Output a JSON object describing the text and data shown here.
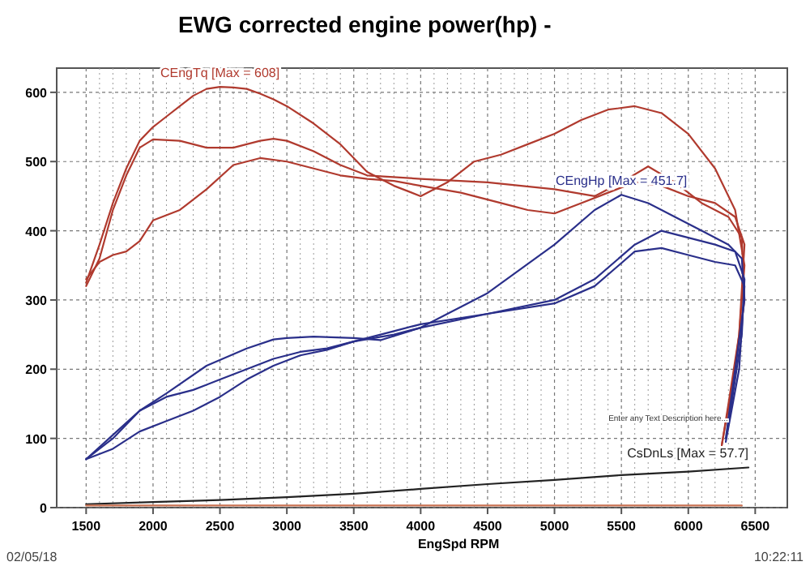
{
  "chart_data": {
    "type": "line",
    "title": "EWG corrected engine power(hp) -",
    "xlabel": "EngSpd RPM",
    "xlim": [
      1280,
      6740
    ],
    "ylim": [
      0,
      635
    ],
    "xticks": [
      1500,
      2000,
      2500,
      3000,
      3500,
      4000,
      4500,
      5000,
      5500,
      6000,
      6500
    ],
    "yticks": [
      0,
      100,
      200,
      300,
      400,
      500,
      600
    ],
    "grid": true,
    "line_style": "solid",
    "annotations": [
      "Enter any Text Description here...",
      "02/05/18",
      "10:22:11"
    ],
    "series": [
      {
        "name": "CEngTq [Max = 608]",
        "color": "#b03a2e",
        "x": [
          1500,
          1600,
          1700,
          1800,
          1900,
          2000,
          2100,
          2200,
          2300,
          2400,
          2500,
          2600,
          2700,
          2800,
          2900,
          3000,
          3200,
          3400,
          3600,
          3800,
          4000,
          4200,
          4400,
          4600,
          4800,
          5000,
          5200,
          5400,
          5600,
          5800,
          6000,
          6200,
          6350,
          6420,
          6380,
          6300,
          6250
        ],
        "values": [
          325,
          380,
          440,
          490,
          530,
          550,
          565,
          580,
          595,
          605,
          608,
          607,
          605,
          598,
          590,
          580,
          555,
          525,
          485,
          465,
          450,
          470,
          500,
          510,
          525,
          540,
          560,
          575,
          580,
          570,
          540,
          490,
          430,
          350,
          250,
          150,
          90
        ]
      },
      {
        "color": "#b03a2e",
        "x": [
          1500,
          1600,
          1700,
          1800,
          1900,
          2000,
          2200,
          2400,
          2600,
          2800,
          2900,
          3000,
          3200,
          3400,
          3600,
          4000,
          4500,
          5000,
          5300,
          5500,
          5700,
          5900,
          6100,
          6300,
          6400,
          6420,
          6350,
          6250
        ],
        "values": [
          320,
          360,
          430,
          480,
          520,
          532,
          530,
          520,
          520,
          530,
          533,
          530,
          515,
          495,
          480,
          475,
          470,
          460,
          450,
          470,
          493,
          470,
          440,
          420,
          390,
          300,
          200,
          90
        ]
      },
      {
        "color": "#b03a2e",
        "x": [
          1500,
          1600,
          1700,
          1800,
          1900,
          2000,
          2200,
          2400,
          2600,
          2800,
          3000,
          3200,
          3400,
          3600,
          3800,
          4000,
          4300,
          4600,
          4800,
          5000,
          5200,
          5400,
          5600,
          5800,
          6000,
          6200,
          6350,
          6420,
          6380,
          6300
        ],
        "values": [
          330,
          355,
          365,
          370,
          385,
          415,
          430,
          460,
          495,
          505,
          500,
          490,
          480,
          475,
          472,
          465,
          455,
          440,
          430,
          425,
          440,
          455,
          470,
          465,
          450,
          440,
          420,
          380,
          250,
          130
        ]
      },
      {
        "name": "CEngHp [Max = 451.7]",
        "color": "#2a2f8a",
        "x": [
          1500,
          1700,
          1900,
          2100,
          2400,
          2700,
          2900,
          3000,
          3200,
          3500,
          3700,
          4000,
          4500,
          5000,
          5300,
          5500,
          5700,
          5900,
          6100,
          6300,
          6400,
          6420,
          6350,
          6280
        ],
        "values": [
          70,
          100,
          140,
          165,
          205,
          230,
          243,
          245,
          247,
          245,
          242,
          260,
          310,
          380,
          430,
          452,
          440,
          420,
          400,
          380,
          360,
          300,
          200,
          100
        ]
      },
      {
        "color": "#2a2f8a",
        "x": [
          1500,
          1700,
          1900,
          2100,
          2300,
          2500,
          2700,
          2900,
          3100,
          3300,
          3500,
          3800,
          4000,
          4500,
          5000,
          5300,
          5600,
          5800,
          6000,
          6200,
          6350,
          6420,
          6400,
          6300
        ],
        "values": [
          70,
          105,
          140,
          160,
          170,
          185,
          200,
          215,
          225,
          230,
          240,
          250,
          260,
          280,
          300,
          330,
          380,
          400,
          390,
          380,
          370,
          330,
          250,
          120
        ]
      },
      {
        "color": "#2a2f8a",
        "x": [
          1500,
          1700,
          1900,
          2100,
          2300,
          2500,
          2700,
          2900,
          3100,
          3300,
          3500,
          3800,
          4000,
          4500,
          5000,
          5300,
          5600,
          5800,
          6000,
          6200,
          6350,
          6420,
          6380,
          6280
        ],
        "values": [
          70,
          85,
          110,
          125,
          140,
          160,
          185,
          205,
          220,
          228,
          240,
          255,
          265,
          280,
          295,
          320,
          370,
          375,
          365,
          355,
          350,
          320,
          200,
          95
        ]
      },
      {
        "name": "CsDnLs [Max = 57.7]",
        "color": "#222222",
        "x": [
          1500,
          2000,
          2500,
          3000,
          3500,
          4000,
          4500,
          5000,
          5500,
          6000,
          6450
        ],
        "values": [
          5,
          8,
          11,
          15,
          20,
          27,
          34,
          40,
          47,
          52,
          58
        ]
      },
      {
        "color": "#c87050",
        "x": [
          1500,
          6400
        ],
        "values": [
          3,
          3
        ]
      }
    ]
  }
}
